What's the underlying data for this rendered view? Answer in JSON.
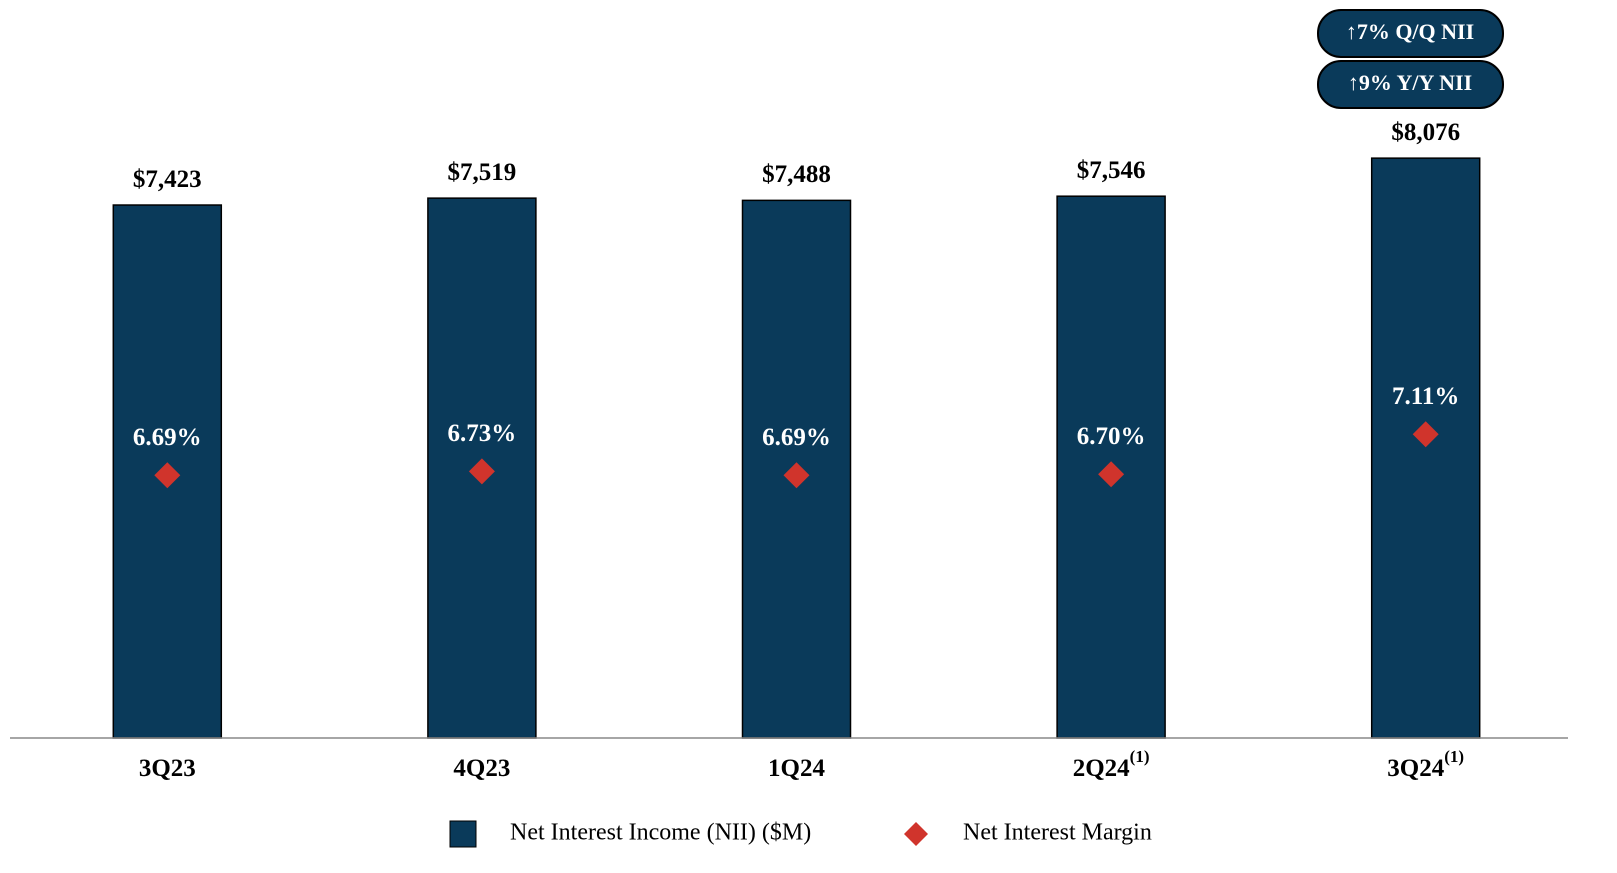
{
  "chart_data": {
    "type": "bar",
    "categories": [
      "3Q23",
      "4Q23",
      "1Q24",
      "2Q24",
      "3Q24"
    ],
    "category_notes": [
      null,
      null,
      null,
      "(1)",
      "(1)"
    ],
    "series": [
      {
        "name": "Net Interest Income (NII) ($M)",
        "color": "#0a3a5a",
        "values": [
          7423,
          7519,
          7488,
          7546,
          8076
        ],
        "value_labels": [
          "$7,423",
          "$7,519",
          "$7,488",
          "$7,546",
          "$8,076"
        ]
      },
      {
        "name": "Net Interest Margin",
        "color": "#d0342c",
        "axis": "y2",
        "values": [
          6.69,
          6.73,
          6.69,
          6.7,
          7.11
        ],
        "value_labels": [
          "6.69%",
          "6.73%",
          "6.69%",
          "6.70%",
          "7.11%"
        ]
      }
    ],
    "annotations": [
      "↑7% Q/Q NII",
      "↑9% Y/Y NII"
    ],
    "ylim": [
      0,
      10000
    ],
    "y2lim": [
      4,
      11.35
    ],
    "grid": false
  }
}
